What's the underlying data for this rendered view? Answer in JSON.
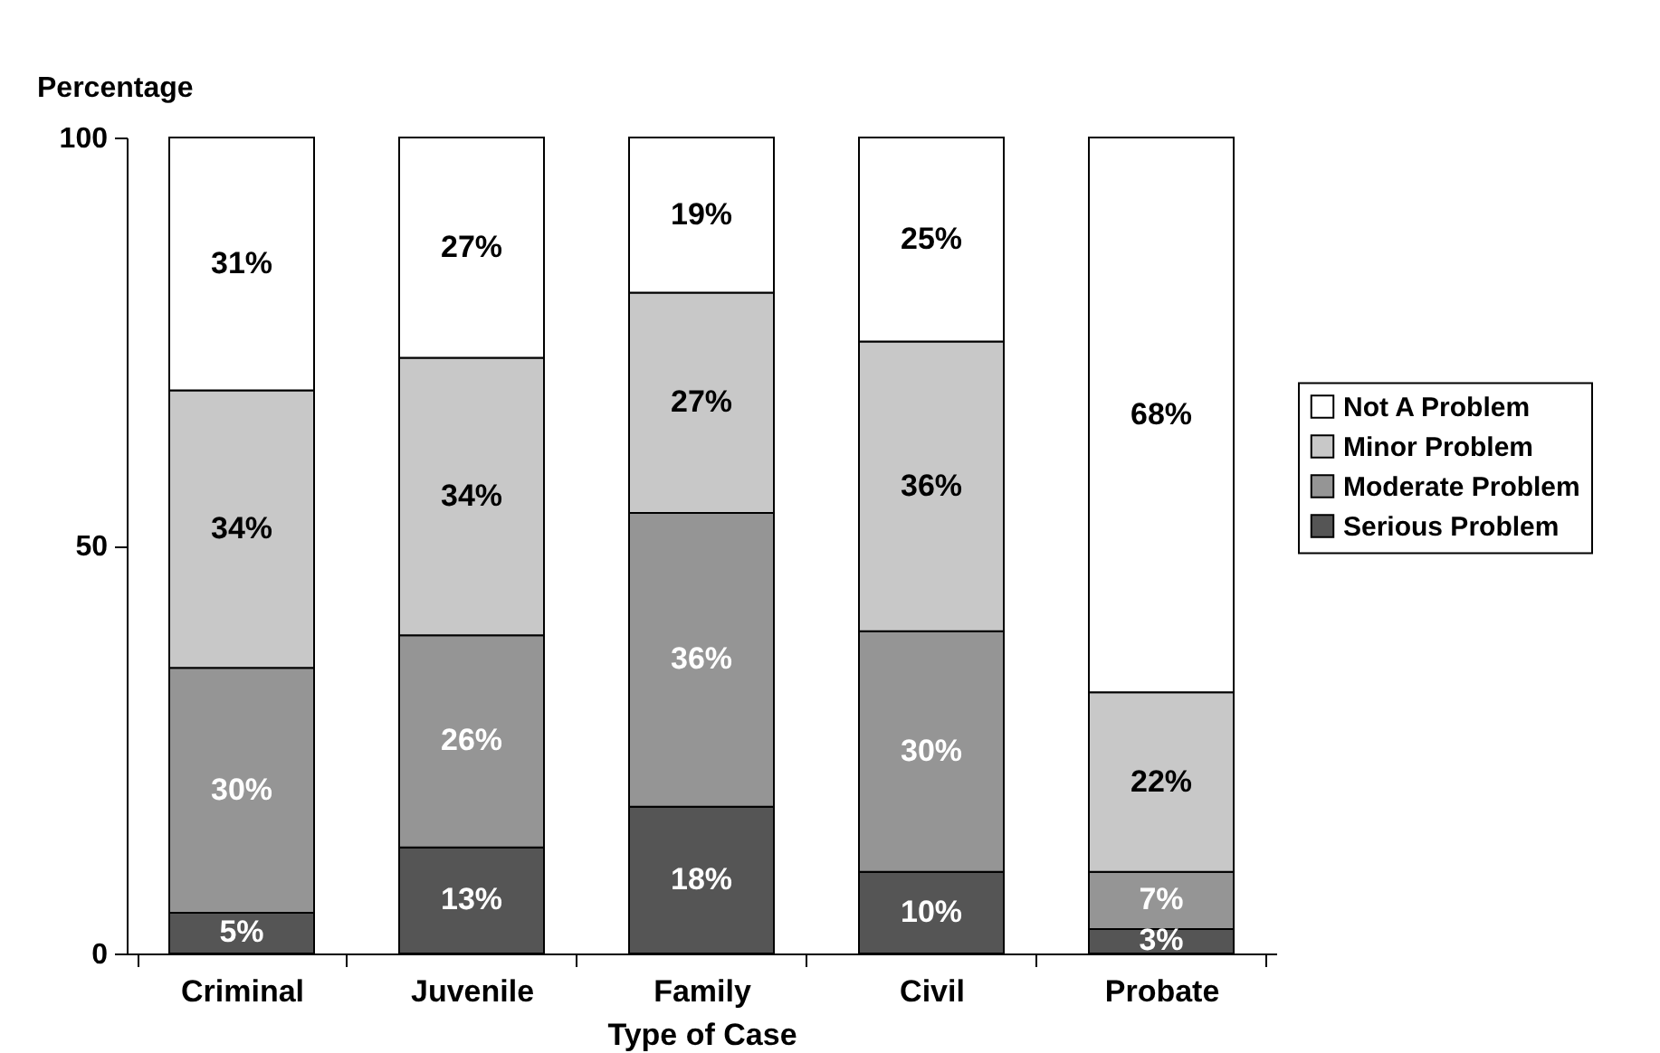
{
  "chart_data": {
    "type": "bar",
    "stacked": true,
    "ylabel": "Percentage",
    "xlabel": "Type of Case",
    "categories": [
      "Criminal",
      "Juvenile",
      "Family",
      "Civil",
      "Probate"
    ],
    "series": [
      {
        "name": "Serious Problem",
        "color": "#555555",
        "values": [
          5,
          13,
          18,
          10,
          3
        ],
        "value_labels": [
          "5%",
          "13%",
          "18%",
          "10%",
          "3%"
        ]
      },
      {
        "name": "Moderate Problem",
        "color": "#959595",
        "values": [
          30,
          26,
          36,
          29.5,
          7
        ],
        "value_labels": [
          "30%",
          "26%",
          "36%",
          "30%",
          "7%"
        ]
      },
      {
        "name": "Minor Problem",
        "color": "#c8c8c8",
        "values": [
          34,
          34,
          27,
          35.5,
          22
        ],
        "value_labels": [
          "34%",
          "34%",
          "27%",
          "36%",
          "22%"
        ]
      },
      {
        "name": "Not A Problem",
        "color": "#ffffff",
        "values": [
          31,
          27,
          19,
          25,
          68
        ],
        "value_labels": [
          "31%",
          "27%",
          "19%",
          "25%",
          "68%"
        ]
      }
    ],
    "ylim": [
      0,
      100
    ],
    "yticks": [
      0,
      50,
      100
    ],
    "grid": false,
    "legend": "right"
  }
}
